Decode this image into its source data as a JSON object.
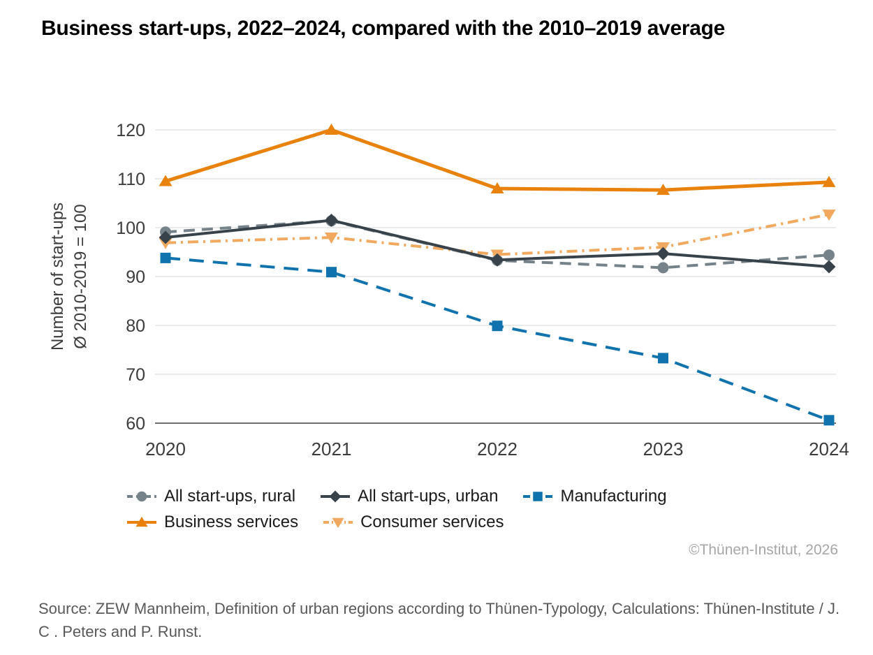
{
  "title": "Business start-ups, 2022–2024, compared with the 2010–2019 average",
  "copyright": "©Thünen-Institut, 2026",
  "source": "Source: ZEW Mannheim, Definition of urban regions according to Thünen-Typology, Calculations: Thünen-Institute / J. C . Peters and P. Runst.",
  "colors": {
    "background": "#FFFFFF",
    "grid": "#E4E4E4",
    "axis": "#3F3F3F",
    "tick_text": "#3C3C3C",
    "legend_text": "#1A1A1A",
    "copyright_text": "#A6A6A6",
    "source_text": "#595959"
  },
  "chart_data": {
    "type": "line",
    "x": [
      "2020",
      "2021",
      "2022",
      "2023",
      "2024"
    ],
    "xlabel": "",
    "ylabel_lines": [
      "Number of start-ups",
      "Ø 2010-2019 = 100"
    ],
    "ylim": [
      60,
      120
    ],
    "yticks": [
      60,
      70,
      80,
      90,
      100,
      110,
      120
    ],
    "grid": "horizontal-only",
    "legend_position": "bottom-left, two rows",
    "series": [
      {
        "name": "All start-ups, rural",
        "color": "#76828A",
        "marker": "circle",
        "line": "dashed",
        "z": 1,
        "values": [
          99.1,
          101.4,
          93.3,
          91.8,
          94.4
        ]
      },
      {
        "name": "All start-ups, urban",
        "color": "#37424A",
        "marker": "diamond",
        "line": "solid",
        "z": 3,
        "values": [
          98.0,
          101.5,
          93.4,
          94.7,
          92.0
        ]
      },
      {
        "name": "Manufacturing",
        "color": "#1173AD",
        "marker": "square",
        "line": "long-dash",
        "z": 4,
        "values": [
          93.8,
          90.9,
          79.9,
          73.3,
          60.6
        ]
      },
      {
        "name": "Business services",
        "color": "#E8820C",
        "marker": "triangle-up",
        "line": "solid",
        "z": 5,
        "values": [
          109.5,
          120.0,
          108.0,
          107.7,
          109.3
        ]
      },
      {
        "name": "Consumer services",
        "color": "#F0A95F",
        "marker": "triangle-down",
        "line": "dash-dot",
        "z": 2,
        "values": [
          96.9,
          98.0,
          94.5,
          96.0,
          102.7
        ]
      }
    ],
    "legend_rows": [
      [
        0,
        1,
        2
      ],
      [
        3,
        4
      ]
    ]
  }
}
